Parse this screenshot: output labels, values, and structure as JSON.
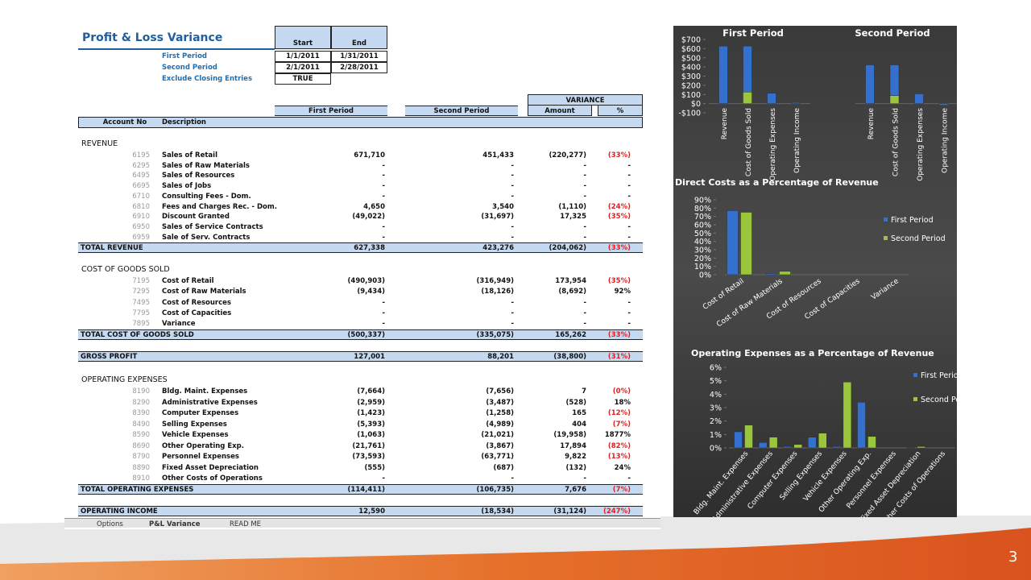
{
  "sheet": {
    "title": "Profit & Loss Variance",
    "period_header": [
      "Start",
      "End"
    ],
    "periods": [
      {
        "label": "First Period",
        "start": "1/1/2011",
        "end": "1/31/2011"
      },
      {
        "label": "Second Period",
        "start": "2/1/2011",
        "end": "2/28/2011"
      }
    ],
    "exclude": {
      "label": "Exclude Closing Entries",
      "value": "TRUE"
    },
    "columns": {
      "first": "First Period",
      "second": "Second Period",
      "variance": "VARIANCE",
      "amount": "Amount",
      "pct": "%",
      "account": "Account No",
      "description": "Description"
    },
    "sections": [
      {
        "heading": "REVENUE",
        "rows": [
          [
            "6195",
            "Sales of Retail",
            "671,710",
            "451,433",
            "(220,277)",
            "(33%)"
          ],
          [
            "6295",
            "Sales of Raw Materials",
            "-",
            "-",
            "-",
            "-"
          ],
          [
            "6495",
            "Sales of Resources",
            "-",
            "-",
            "-",
            "-"
          ],
          [
            "6695",
            "Sales of Jobs",
            "-",
            "-",
            "-",
            "-"
          ],
          [
            "6710",
            "Consulting Fees - Dom.",
            "-",
            "-",
            "-",
            "-"
          ],
          [
            "6810",
            "Fees and Charges Rec. - Dom.",
            "4,650",
            "3,540",
            "(1,110)",
            "(24%)"
          ],
          [
            "6910",
            "Discount Granted",
            "(49,022)",
            "(31,697)",
            "17,325",
            "(35%)"
          ],
          [
            "6950",
            "Sales of Service Contracts",
            "-",
            "-",
            "-",
            "-"
          ],
          [
            "6959",
            "Sale of Serv. Contracts",
            "-",
            "-",
            "-",
            "-"
          ]
        ],
        "total": [
          "TOTAL REVENUE",
          "627,338",
          "423,276",
          "(204,062)",
          "(33%)"
        ]
      },
      {
        "heading": "COST OF GOODS SOLD",
        "rows": [
          [
            "7195",
            "Cost of Retail",
            "(490,903)",
            "(316,949)",
            "173,954",
            "(35%)"
          ],
          [
            "7295",
            "Cost of Raw Materials",
            "(9,434)",
            "(18,126)",
            "(8,692)",
            "92%"
          ],
          [
            "7495",
            "Cost of Resources",
            "-",
            "-",
            "-",
            "-"
          ],
          [
            "7795",
            "Cost of Capacities",
            "-",
            "-",
            "-",
            "-"
          ],
          [
            "7895",
            "Variance",
            "-",
            "-",
            "-",
            "-"
          ]
        ],
        "total": [
          "TOTAL COST OF GOODS SOLD",
          "(500,337)",
          "(335,075)",
          "165,262",
          "(33%)"
        ]
      },
      {
        "total": [
          "GROSS PROFIT",
          "127,001",
          "88,201",
          "(38,800)",
          "(31%)"
        ]
      },
      {
        "heading": "OPERATING EXPENSES",
        "rows": [
          [
            "8190",
            "Bldg. Maint. Expenses",
            "(7,664)",
            "(7,656)",
            "7",
            "(0%)"
          ],
          [
            "8290",
            "Administrative Expenses",
            "(2,959)",
            "(3,487)",
            "(528)",
            "18%"
          ],
          [
            "8390",
            "Computer Expenses",
            "(1,423)",
            "(1,258)",
            "165",
            "(12%)"
          ],
          [
            "8490",
            "Selling Expenses",
            "(5,393)",
            "(4,989)",
            "404",
            "(7%)"
          ],
          [
            "8590",
            "Vehicle Expenses",
            "(1,063)",
            "(21,021)",
            "(19,958)",
            "1877%"
          ],
          [
            "8690",
            "Other Operating Exp.",
            "(21,761)",
            "(3,867)",
            "17,894",
            "(82%)"
          ],
          [
            "8790",
            "Personnel Expenses",
            "(73,593)",
            "(63,771)",
            "9,822",
            "(13%)"
          ],
          [
            "8890",
            "Fixed Asset Depreciation",
            "(555)",
            "(687)",
            "(132)",
            "24%"
          ],
          [
            "8910",
            "Other Costs of Operations",
            "-",
            "-",
            "-",
            "-"
          ]
        ],
        "total": [
          "TOTAL OPERATING EXPENSES",
          "(114,411)",
          "(106,735)",
          "7,676",
          "(7%)"
        ]
      },
      {
        "total": [
          "OPERATING INCOME",
          "12,590",
          "(18,534)",
          "(31,124)",
          "(247%)"
        ]
      }
    ],
    "tabs": [
      "Options",
      "P&L Variance",
      "READ ME"
    ]
  },
  "page_number": "3",
  "chart_data": [
    {
      "type": "bar",
      "stacked": true,
      "title": "First Period",
      "categories": [
        "Revenue",
        "Cost of Goods Sold",
        "Operating Expenses",
        "Operating Income"
      ],
      "series": [
        {
          "color": "#9ac63e",
          "values": [
            null,
            127,
            null,
            null
          ]
        },
        {
          "color": "#3471cf",
          "values": [
            627,
            500,
            114,
            13
          ]
        }
      ],
      "ylim": [
        -100,
        700
      ],
      "yticks": [
        {
          "value": 700,
          "label": "$700"
        },
        {
          "value": 600,
          "label": "$600"
        },
        {
          "value": 500,
          "label": "$500"
        },
        {
          "value": 400,
          "label": "$400"
        },
        {
          "value": 300,
          "label": "$300"
        },
        {
          "value": 200,
          "label": "$200"
        },
        {
          "value": 100,
          "label": "$100"
        },
        {
          "value": 0,
          "label": "$0"
        },
        {
          "value": -100,
          "label": "-$100"
        }
      ]
    },
    {
      "type": "bar",
      "stacked": true,
      "title": "Second Period",
      "categories": [
        "Revenue",
        "Cost of Goods Sold",
        "Operating Expenses",
        "Operating Income"
      ],
      "series": [
        {
          "color": "#9ac63e",
          "values": [
            null,
            88,
            null,
            null
          ]
        },
        {
          "color": "#3471cf",
          "values": [
            423,
            335,
            107,
            -19
          ]
        }
      ],
      "ylim": [
        -100,
        700
      ]
    },
    {
      "type": "bar",
      "title": "Direct Costs as a Percentage of Revenue",
      "categories": [
        "Cost of Retail",
        "Cost of Raw Materials",
        "Cost of Resources",
        "Cost of Capacities",
        "Variance"
      ],
      "series": [
        {
          "name": "First Period",
          "color": "#3471cf",
          "values": [
            77,
            1.5,
            0,
            0,
            0
          ]
        },
        {
          "name": "Second Period",
          "color": "#9ac63e",
          "values": [
            75,
            4,
            0,
            0,
            0
          ]
        }
      ],
      "ylim": [
        0,
        90
      ],
      "yticks": [
        {
          "value": 0,
          "label": "0%"
        },
        {
          "value": 10,
          "label": "10%"
        },
        {
          "value": 20,
          "label": "20%"
        },
        {
          "value": 30,
          "label": "30%"
        },
        {
          "value": 40,
          "label": "40%"
        },
        {
          "value": 50,
          "label": "50%"
        },
        {
          "value": 60,
          "label": "60%"
        },
        {
          "value": 70,
          "label": "70%"
        },
        {
          "value": 80,
          "label": "80%"
        },
        {
          "value": 90,
          "label": "90%"
        }
      ],
      "legend": "right"
    },
    {
      "type": "bar",
      "title": "Operating Expenses as a Percentage of Revenue",
      "categories": [
        "Bldg. Maint. Expenses",
        "Administrative Expenses",
        "Computer Expenses",
        "Selling Expenses",
        "Vehicle Expenses",
        "Other Operating Exp.",
        "Personnel Expenses",
        "Fixed Asset Depreciation",
        "Other Costs of Operations"
      ],
      "series": [
        {
          "name": "First Period",
          "color": "#3471cf",
          "values": [
            1.2,
            0.4,
            0.1,
            0.8,
            0.1,
            3.4,
            0,
            0.05,
            0
          ]
        },
        {
          "name": "Second Period",
          "color": "#9ac63e",
          "values": [
            1.7,
            0.8,
            0.25,
            1.1,
            4.9,
            0.85,
            0,
            0.1,
            0
          ]
        }
      ],
      "ylim": [
        0,
        6
      ],
      "yticks": [
        {
          "value": 0,
          "label": "0%"
        },
        {
          "value": 1,
          "label": "1%"
        },
        {
          "value": 2,
          "label": "2%"
        },
        {
          "value": 3,
          "label": "3%"
        },
        {
          "value": 4,
          "label": "4%"
        },
        {
          "value": 5,
          "label": "5%"
        },
        {
          "value": 6,
          "label": "6%"
        }
      ],
      "legend": "right"
    }
  ]
}
